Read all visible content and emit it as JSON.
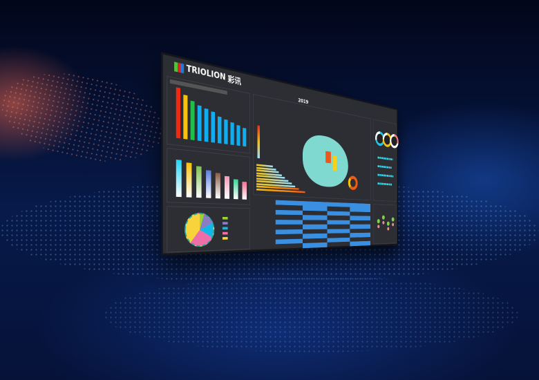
{
  "logo": {
    "brand": "TRIOLION",
    "brand_cn": "彩讯"
  },
  "header": {
    "year": "2019"
  },
  "colors": {
    "wall": "#2c2e33",
    "bar_blue": "#10aef0",
    "bar_red": "#f02a10",
    "bar_yellow": "#f7c10c",
    "bar_green": "#1ec04a",
    "map": "#7fd9d0",
    "table_row": "#3a8fe0"
  },
  "ranking_bars": [
    100,
    88,
    79,
    72,
    68,
    64,
    56,
    52,
    48,
    44,
    40
  ],
  "gradient_bars": [
    92,
    87,
    80,
    72,
    66,
    60,
    54,
    48
  ],
  "pie_slices": [
    {
      "value": 5,
      "color": "#9cd233"
    },
    {
      "value": 13,
      "color": "#8e7cc3"
    },
    {
      "value": 15,
      "color": "#14b6e8"
    },
    {
      "value": 28,
      "color": "#ee6fa8"
    },
    {
      "value": 39,
      "color": "#f9d33b"
    }
  ],
  "rings": [
    {
      "color": "#22c5ea",
      "fill": 0.7
    },
    {
      "color": "#f7c10c",
      "fill": 0.75
    },
    {
      "color": "#f08080",
      "fill": 0.3
    }
  ]
}
